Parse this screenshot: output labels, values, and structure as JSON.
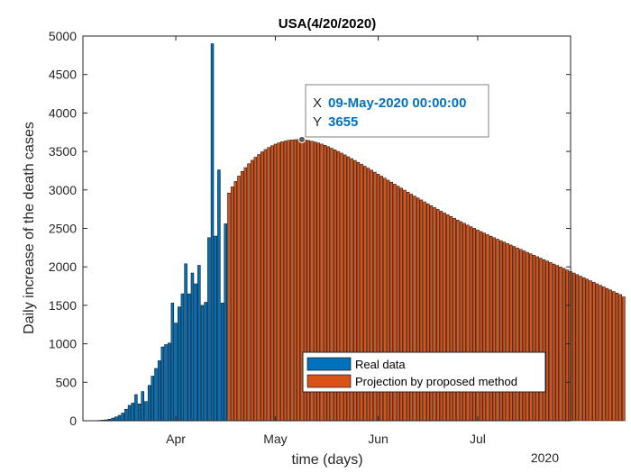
{
  "chart_data": {
    "type": "bar",
    "title": "USA(4/20/2020)",
    "xlabel": "time (days)",
    "ylabel": "Daily increase of the death cases",
    "x_axis_note": "2020",
    "ylim": [
      0,
      5000
    ],
    "yticks": [
      0,
      500,
      1000,
      1500,
      2000,
      2500,
      3000,
      3500,
      4000,
      4500,
      5000
    ],
    "xlim": [
      "2020-03-04",
      "2020-07-29"
    ],
    "xticks": [
      {
        "date": "2020-04-01",
        "label": "Apr"
      },
      {
        "date": "2020-05-01",
        "label": "May"
      },
      {
        "date": "2020-06-01",
        "label": "Jun"
      },
      {
        "date": "2020-07-01",
        "label": "Jul"
      }
    ],
    "legend_position": "bottom-right",
    "series": [
      {
        "name": "Real data",
        "color": "#0072BD",
        "start_date": "2020-03-08",
        "values": [
          2,
          5,
          8,
          12,
          20,
          35,
          50,
          70,
          100,
          150,
          200,
          230,
          340,
          220,
          380,
          250,
          460,
          580,
          680,
          780,
          960,
          990,
          1010,
          1530,
          1270,
          1480,
          1650,
          2040,
          1650,
          1920,
          1780,
          2020,
          1500,
          1540,
          2380,
          4900,
          2400,
          3260,
          1530,
          2560
        ]
      },
      {
        "name": "Projection by proposed method",
        "color": "#D95319",
        "start_date": "2020-04-17",
        "values": [
          2960,
          3040,
          3110,
          3180,
          3240,
          3290,
          3340,
          3385,
          3425,
          3460,
          3495,
          3525,
          3552,
          3575,
          3595,
          3612,
          3625,
          3636,
          3645,
          3650,
          3653,
          3655,
          3654,
          3650,
          3643,
          3634,
          3623,
          3610,
          3596,
          3580,
          3562,
          3542,
          3521,
          3500,
          3478,
          3455,
          3431,
          3407,
          3383,
          3358,
          3333,
          3308,
          3283,
          3257,
          3231,
          3205,
          3179,
          3153,
          3127,
          3101,
          3075,
          3049,
          3023,
          2997,
          2971,
          2945,
          2920,
          2895,
          2870,
          2845,
          2820,
          2795,
          2771,
          2747,
          2723,
          2700,
          2677,
          2654,
          2631,
          2609,
          2587,
          2565,
          2543,
          2522,
          2501,
          2480,
          2459,
          2439,
          2419,
          2399,
          2379,
          2360,
          2341,
          2322,
          2303,
          2284,
          2265,
          2246,
          2227,
          2208,
          2189,
          2170,
          2151,
          2132,
          2113,
          2094,
          2075,
          2056,
          2037,
          2018,
          1999,
          1980,
          1960,
          1940,
          1920,
          1900,
          1880,
          1860,
          1840,
          1820,
          1800,
          1780,
          1760,
          1740,
          1720,
          1700,
          1680,
          1660,
          1640,
          1610
        ]
      }
    ],
    "datatip": {
      "x_label": "X",
      "y_label": "Y",
      "x_value": "09-May-2020 00:00:00",
      "y_value": "3655",
      "x": "2020-05-09",
      "y": 3655,
      "value_color": "#0072BD"
    }
  }
}
